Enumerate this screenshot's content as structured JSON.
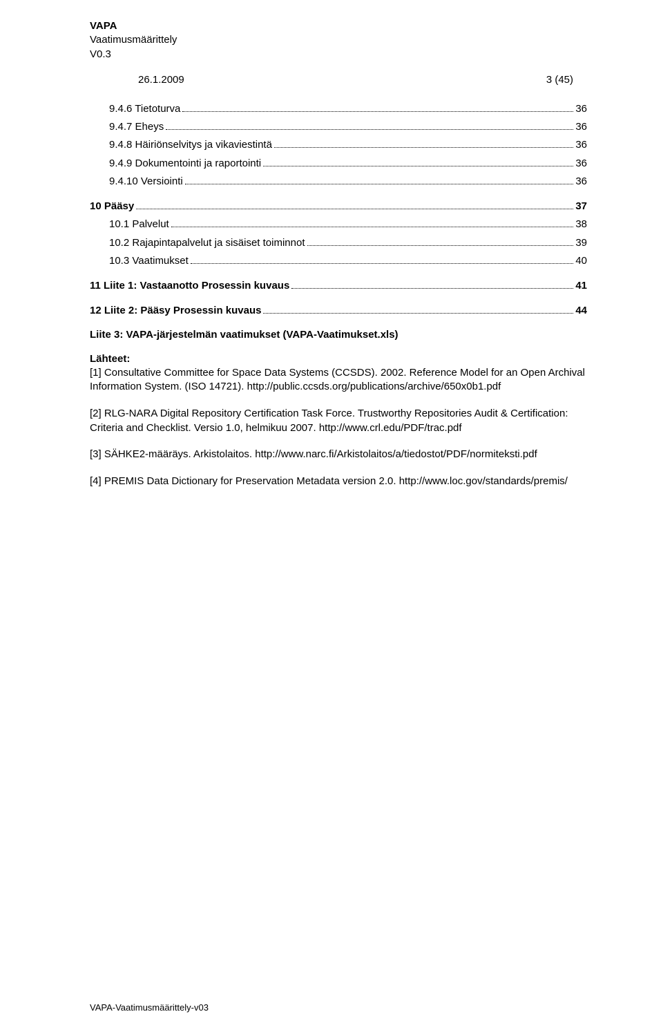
{
  "header": {
    "title": "VAPA",
    "subtitle": "Vaatimusmäärittely",
    "version": "V0.3",
    "date": "26.1.2009",
    "page_indicator": "3 (45)"
  },
  "toc": [
    {
      "level": 2,
      "label": "9.4.6 Tietoturva",
      "page": "36"
    },
    {
      "level": 2,
      "label": "9.4.7 Eheys",
      "page": "36"
    },
    {
      "level": 2,
      "label": "9.4.8 Häiriönselvitys ja vikaviestintä",
      "page": "36"
    },
    {
      "level": 2,
      "label": "9.4.9 Dokumentointi ja raportointi",
      "page": "36"
    },
    {
      "level": 2,
      "label": "9.4.10 Versiointi",
      "page": "36"
    },
    {
      "gap": true
    },
    {
      "level": 1,
      "label": "10 Pääsy",
      "page": "37"
    },
    {
      "level": 2,
      "label": "10.1 Palvelut",
      "page": "38"
    },
    {
      "level": 2,
      "label": "10.2 Rajapintapalvelut ja sisäiset toiminnot",
      "page": "39"
    },
    {
      "level": 2,
      "label": "10.3 Vaatimukset",
      "page": "40"
    },
    {
      "gap": true
    },
    {
      "level": 1,
      "label": "11 Liite 1: Vastaanotto Prosessin kuvaus",
      "page": "41"
    },
    {
      "gap": true
    },
    {
      "level": 1,
      "label": "12 Liite 2: Pääsy Prosessin kuvaus",
      "page": "44"
    }
  ],
  "liite3": "Liite 3: VAPA-järjestelmän vaatimukset (VAPA-Vaatimukset.xls)",
  "lahteet_heading": "Lähteet:",
  "references": [
    "[1] Consultative Committee for Space Data Systems (CCSDS). 2002. Reference Model for an Open Archival Information System. (ISO 14721). http://public.ccsds.org/publications/archive/650x0b1.pdf",
    "[2] RLG-NARA Digital Repository Certification Task Force. Trustworthy Repositories Audit & Certification: Criteria and Checklist. Versio 1.0, helmikuu 2007. http://www.crl.edu/PDF/trac.pdf",
    "[3] SÄHKE2-määräys. Arkistolaitos. http://www.narc.fi/Arkistolaitos/a/tiedostot/PDF/normiteksti.pdf",
    "[4] PREMIS Data Dictionary for Preservation Metadata version 2.0. http://www.loc.gov/standards/premis/"
  ],
  "footer": "VAPA-Vaatimusmäärittely-v03"
}
